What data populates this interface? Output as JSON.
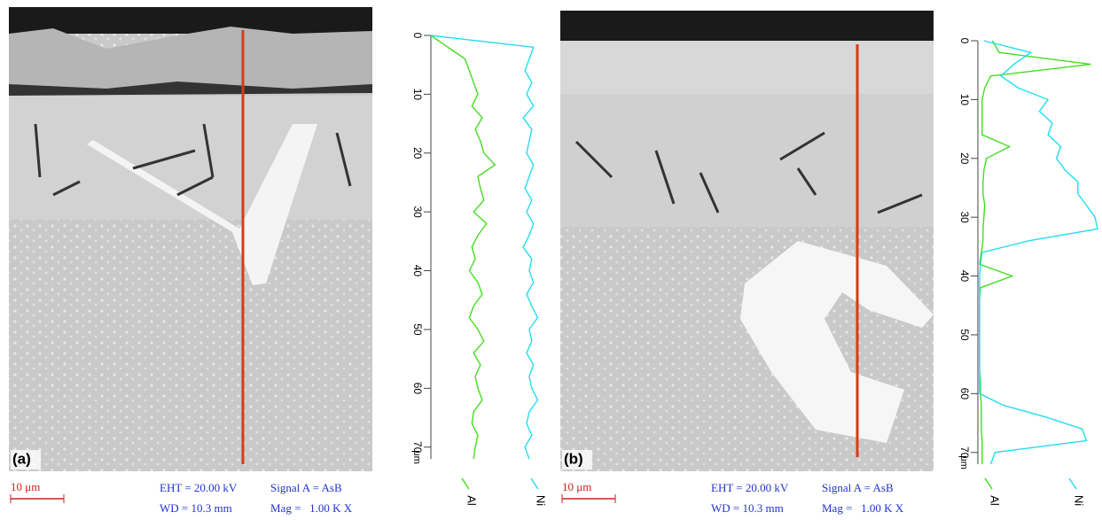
{
  "chart_data": [
    {
      "type": "line",
      "x_unit": "μm",
      "xlim": [
        0,
        72
      ],
      "xticks": [
        0,
        10,
        20,
        30,
        40,
        50,
        60,
        70
      ],
      "x": [
        0,
        2,
        4,
        6,
        8,
        10,
        12,
        14,
        16,
        18,
        20,
        22,
        24,
        26,
        28,
        30,
        32,
        34,
        36,
        38,
        40,
        42,
        44,
        46,
        48,
        50,
        52,
        54,
        56,
        58,
        60,
        62,
        64,
        66,
        68,
        70,
        72
      ],
      "series": [
        {
          "name": "Al",
          "color": "#44dd22",
          "values": [
            0,
            20,
            40,
            45,
            50,
            55,
            48,
            60,
            52,
            58,
            62,
            75,
            55,
            58,
            62,
            50,
            65,
            55,
            48,
            52,
            45,
            55,
            60,
            50,
            45,
            55,
            62,
            50,
            58,
            52,
            55,
            60,
            50,
            48,
            55,
            52,
            50
          ]
        },
        {
          "name": "Ni",
          "color": "#22ddee",
          "values": [
            0,
            120,
            115,
            110,
            118,
            112,
            120,
            108,
            118,
            115,
            112,
            120,
            115,
            110,
            118,
            112,
            120,
            115,
            108,
            118,
            115,
            120,
            112,
            118,
            125,
            115,
            118,
            112,
            120,
            115,
            118,
            125,
            115,
            112,
            118,
            110,
            115
          ]
        }
      ]
    },
    {
      "type": "line",
      "x_unit": "μm",
      "xlim": [
        0,
        72
      ],
      "xticks": [
        0,
        10,
        20,
        30,
        40,
        50,
        60,
        70
      ],
      "x": [
        0,
        2,
        4,
        6,
        8,
        10,
        12,
        14,
        16,
        18,
        20,
        22,
        24,
        26,
        28,
        30,
        32,
        34,
        36,
        38,
        40,
        42,
        44,
        46,
        48,
        50,
        52,
        54,
        56,
        58,
        60,
        62,
        64,
        66,
        68,
        70,
        72
      ],
      "series": [
        {
          "name": "Al",
          "color": "#44dd22",
          "values": [
            17,
            25,
            132,
            15,
            8,
            5,
            5,
            5,
            5,
            37,
            10,
            7,
            6,
            6,
            8,
            7,
            6,
            6,
            4,
            2,
            40,
            3,
            2,
            2,
            2,
            2,
            2,
            2,
            2,
            3,
            3,
            4,
            4,
            4,
            5,
            5,
            5
          ]
        },
        {
          "name": "Ni",
          "color": "#22ddee",
          "values": [
            7,
            62,
            42,
            27,
            47,
            82,
            72,
            87,
            82,
            97,
            92,
            102,
            117,
            117,
            127,
            137,
            140,
            60,
            5,
            3,
            2,
            2,
            2,
            2,
            2,
            2,
            2,
            2,
            2,
            2,
            2,
            30,
            80,
            122,
            127,
            20,
            15
          ]
        }
      ]
    }
  ],
  "micrographs": [
    {
      "label": "(a)",
      "scale_bar": "10 μm",
      "eht": "EHT = 20.00 kV",
      "signal": "Signal A = AsB",
      "wd": "WD = 10.3 mm",
      "mag": "Mag =   1.00 K X"
    },
    {
      "label": "(b)",
      "scale_bar": "10 μm",
      "eht": "EHT = 20.00 kV",
      "signal": "Signal A = AsB",
      "wd": "WD = 10.3 mm",
      "mag": "Mag =   1.00 K X"
    }
  ]
}
